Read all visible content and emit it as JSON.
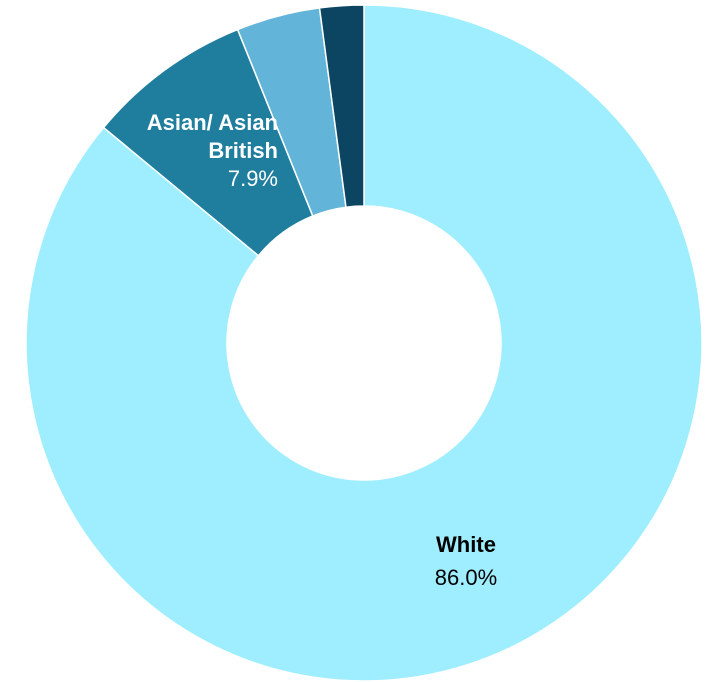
{
  "chart_data": {
    "type": "pie",
    "donut": true,
    "title": "",
    "slices": [
      {
        "label": "White",
        "value": 86.0,
        "value_label": "86.0%",
        "color": "#9eeeff",
        "text_color": "#000000",
        "show_label": true
      },
      {
        "label": "Asian/ Asian British",
        "label_lines": [
          "Asian/ Asian",
          "British"
        ],
        "value": 7.9,
        "value_label": "7.9%",
        "color": "#1f7d9e",
        "text_color": "#ffffff",
        "show_label": true
      },
      {
        "label": "",
        "value": 4.0,
        "value_label": "",
        "color": "#62b4d8",
        "text_color": "#ffffff",
        "show_label": false
      },
      {
        "label": "",
        "value": 2.1,
        "value_label": "",
        "color": "#0b4562",
        "text_color": "#ffffff",
        "show_label": false
      }
    ],
    "start_angle": "12 o'clock",
    "direction": "clockwise",
    "legend": "none"
  }
}
